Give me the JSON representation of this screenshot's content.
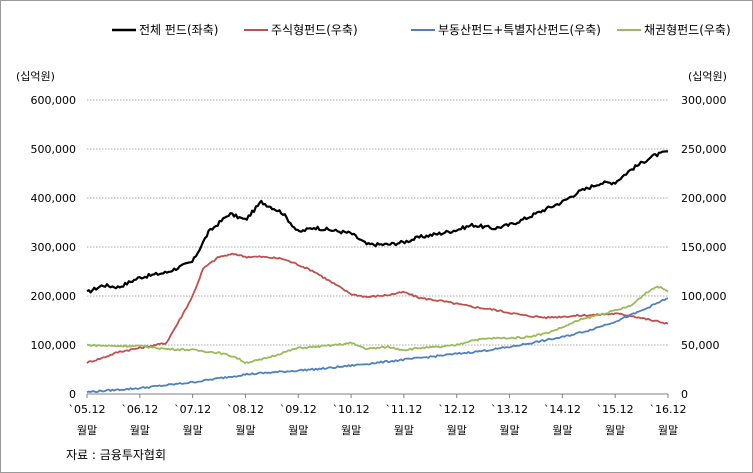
{
  "chart_data": {
    "type": "line",
    "left_unit": "(십억원)",
    "right_unit": "(십억원)",
    "left_axis": {
      "min": 0,
      "max": 600000,
      "step": 100000,
      "tick_labels": [
        "0",
        "100,000",
        "200,000",
        "300,000",
        "400,000",
        "500,000",
        "600,000"
      ]
    },
    "right_axis": {
      "min": 0,
      "max": 300000,
      "step": 50000,
      "tick_labels": [
        "0",
        "50,000",
        "100,000",
        "150,000",
        "200,000",
        "250,000",
        "300,000"
      ]
    },
    "categories": [
      {
        "top": "`05.12",
        "bottom": "월말"
      },
      {
        "top": "`06.12",
        "bottom": "월말"
      },
      {
        "top": "`07.12",
        "bottom": "월말"
      },
      {
        "top": "`08.12",
        "bottom": "월말"
      },
      {
        "top": "`09.12",
        "bottom": "월말"
      },
      {
        "top": "`10.12",
        "bottom": "월말"
      },
      {
        "top": "`11.12",
        "bottom": "월말"
      },
      {
        "top": "`12.12",
        "bottom": "월말"
      },
      {
        "top": "`13.12",
        "bottom": "월말"
      },
      {
        "top": "`14.12",
        "bottom": "월말"
      },
      {
        "top": "`15.12",
        "bottom": "월말"
      },
      {
        "top": "`16.12",
        "bottom": "월말"
      }
    ],
    "gridlines": "horizontal dotted",
    "legend_position": "top",
    "series": [
      {
        "name": "전체 펀드(좌축)",
        "axis": "left",
        "color": "#000000",
        "x": [
          0,
          0.3,
          0.6,
          1.0,
          1.5,
          2.0,
          2.3,
          2.7,
          3.0,
          3.3,
          3.7,
          4.0,
          4.3,
          4.7,
          5.0,
          5.3,
          5.7,
          6.0,
          6.3,
          6.7,
          7.0,
          7.3,
          7.7,
          8.0,
          8.3,
          8.7,
          9.0,
          9.3,
          9.7,
          10.0,
          10.3,
          10.7,
          11.0
        ],
        "values": [
          207000,
          222000,
          218000,
          238000,
          248000,
          270000,
          330000,
          368000,
          355000,
          392000,
          370000,
          330000,
          340000,
          333000,
          328000,
          305000,
          305000,
          310000,
          320000,
          328000,
          335000,
          345000,
          338000,
          345000,
          358000,
          378000,
          392000,
          412000,
          430000,
          432000,
          458000,
          485000,
          495000
        ]
      },
      {
        "name": "주식형펀드(우축)",
        "axis": "right",
        "color": "#c0504d",
        "x": [
          0,
          0.3,
          0.6,
          1.0,
          1.5,
          1.8,
          2.0,
          2.2,
          2.5,
          2.8,
          3.0,
          3.3,
          3.7,
          4.0,
          4.3,
          4.6,
          5.0,
          5.3,
          5.7,
          6.0,
          6.3,
          6.7,
          7.0,
          7.3,
          7.7,
          8.0,
          8.3,
          8.7,
          9.0,
          9.3,
          9.7,
          10.0,
          10.3,
          10.7,
          11.0
        ],
        "values": [
          32000,
          37000,
          43000,
          47000,
          52000,
          80000,
          100000,
          128000,
          140000,
          143000,
          140000,
          140000,
          138000,
          132000,
          125000,
          115000,
          102000,
          99000,
          101000,
          104000,
          98000,
          95000,
          92000,
          89000,
          86000,
          83000,
          80000,
          78000,
          79000,
          80000,
          81000,
          82000,
          80000,
          75000,
          72000
        ]
      },
      {
        "name": "부동산펀드+특별자산펀드(우축)",
        "axis": "right",
        "color": "#4f81bd",
        "x": [
          0,
          0.5,
          1.0,
          1.5,
          2.0,
          2.5,
          3.0,
          3.5,
          4.0,
          4.5,
          5.0,
          5.5,
          6.0,
          6.5,
          7.0,
          7.5,
          8.0,
          8.5,
          9.0,
          9.5,
          10.0,
          10.5,
          11.0
        ],
        "values": [
          2000,
          4000,
          6000,
          9000,
          12000,
          16000,
          20000,
          22000,
          24000,
          26000,
          29000,
          32000,
          35000,
          38000,
          41000,
          44000,
          48000,
          53000,
          58000,
          65000,
          74000,
          85000,
          98000
        ]
      },
      {
        "name": "채권형펀드(우축)",
        "axis": "right",
        "color": "#9bbb59",
        "x": [
          0,
          0.5,
          1.0,
          1.5,
          2.0,
          2.5,
          2.8,
          3.0,
          3.3,
          3.7,
          4.0,
          4.3,
          4.7,
          5.0,
          5.3,
          5.7,
          6.0,
          6.3,
          6.7,
          7.0,
          7.3,
          7.7,
          8.0,
          8.3,
          8.7,
          9.0,
          9.3,
          9.7,
          10.0,
          10.3,
          10.6,
          10.8,
          11.0
        ],
        "values": [
          50000,
          49000,
          49000,
          46000,
          45000,
          42000,
          38000,
          32000,
          35000,
          42000,
          47000,
          48000,
          50000,
          52000,
          46000,
          48000,
          45000,
          47000,
          48000,
          50000,
          55000,
          57000,
          57000,
          58000,
          62000,
          68000,
          75000,
          81000,
          85000,
          90000,
          104000,
          110000,
          105000
        ]
      }
    ],
    "source": "자료 : 금융투자협회"
  }
}
